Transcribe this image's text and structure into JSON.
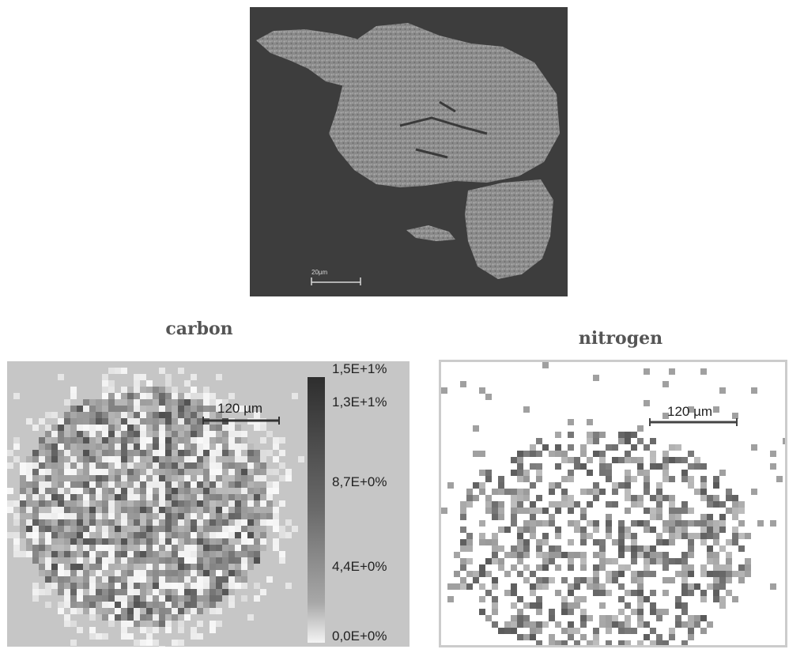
{
  "sem": {
    "scale_bar_label": "20µm",
    "background_color": "#3d3d3d",
    "particle_color": "#8e8e8e"
  },
  "carbon": {
    "title": "carbon",
    "scale_bar_label": "120 µm",
    "colorbar": {
      "ticks": [
        "1,5E+1%",
        "1,3E+1%",
        "8,7E+0%",
        "4,4E+0%",
        "0,0E+0%"
      ],
      "max_color": "#2e2e2e",
      "min_color": "#f4f4f4"
    },
    "background_color": "#c6c6c6"
  },
  "nitrogen": {
    "title": "nitrogen",
    "scale_bar_label": "120 µm",
    "background_color": "#ffffff"
  }
}
